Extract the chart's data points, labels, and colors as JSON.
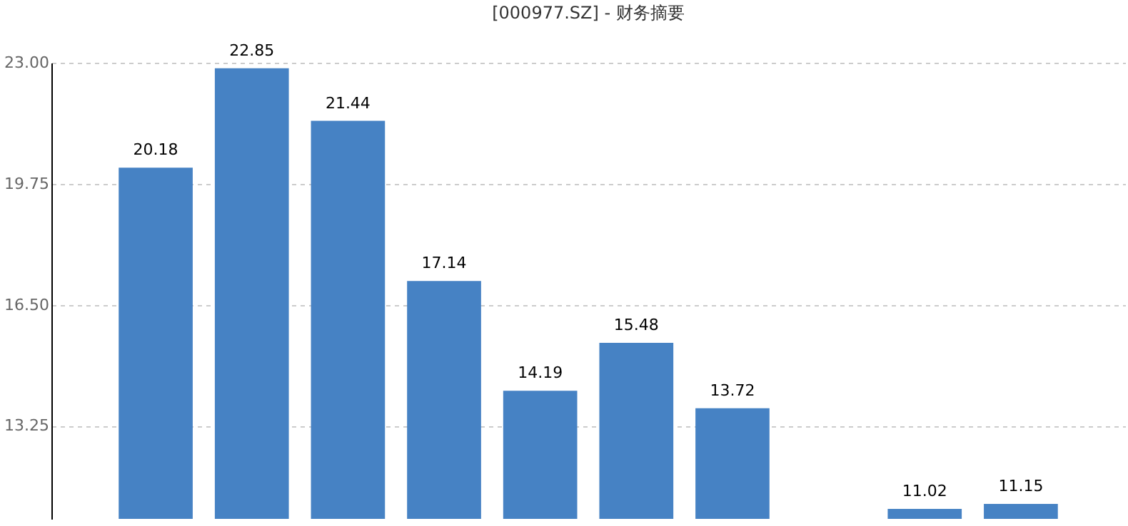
{
  "chart_data": {
    "type": "bar",
    "title": "[000977.SZ] - 财务摘要",
    "categories": [
      null,
      null,
      null,
      null,
      null,
      null,
      null,
      null,
      null,
      null
    ],
    "values": [
      20.18,
      22.85,
      21.44,
      17.14,
      14.19,
      15.48,
      13.72,
      null,
      11.02,
      11.15
    ],
    "color": "#4682c4",
    "ylim": [
      10.75,
      23.0
    ],
    "yticks": [
      {
        "value": 13.25,
        "label": "13.25"
      },
      {
        "value": 16.5,
        "label": "16.50"
      },
      {
        "value": 19.75,
        "label": "19.75"
      },
      {
        "value": 23.0,
        "label": "23.00"
      }
    ],
    "grid": "y",
    "data_labels": true,
    "tick_labels": "y"
  }
}
